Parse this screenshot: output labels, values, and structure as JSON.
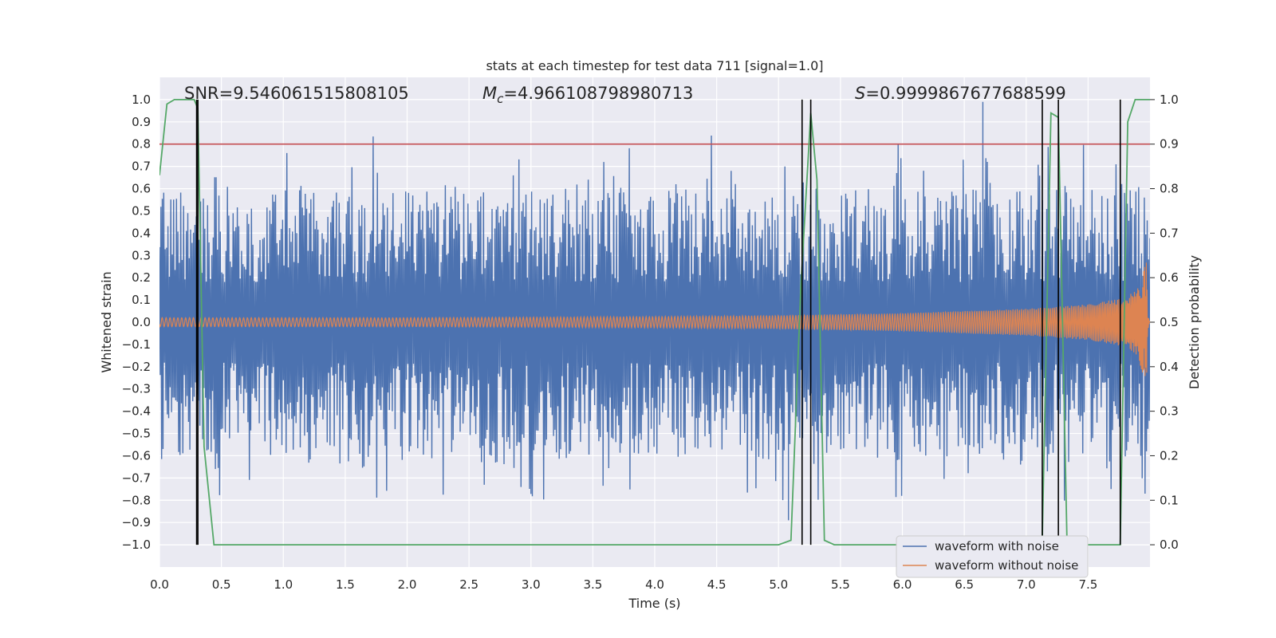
{
  "chart_data": {
    "type": "line",
    "title": "stats at each timestep for test data 711 [signal=1.0]",
    "xlabel": "Time (s)",
    "ylabel": "Whitened strain",
    "y2label": "Detection probability",
    "xlim": [
      0.0,
      8.0
    ],
    "ylim": [
      -1.1,
      1.1
    ],
    "y2lim": [
      -0.05,
      1.05
    ],
    "xticks": [
      0.0,
      0.5,
      1.0,
      1.5,
      2.0,
      2.5,
      3.0,
      3.5,
      4.0,
      4.5,
      5.0,
      5.5,
      6.0,
      6.5,
      7.0,
      7.5
    ],
    "yticks": [
      -1.0,
      -0.9,
      -0.8,
      -0.7,
      -0.6,
      -0.5,
      -0.4,
      -0.3,
      -0.2,
      -0.1,
      0.0,
      0.1,
      0.2,
      0.3,
      0.4,
      0.5,
      0.6,
      0.7,
      0.8,
      0.9,
      1.0
    ],
    "y2ticks": [
      0.0,
      0.1,
      0.2,
      0.3,
      0.4,
      0.5,
      0.6,
      0.7,
      0.8,
      0.9,
      1.0
    ],
    "grid": true,
    "legend_position": "lower-right",
    "annotations": {
      "snr_label": "SNR=9.546061515808105",
      "mc_symbol": "M",
      "mc_subscript": "c",
      "mc_value": "=4.966108798980713",
      "s_symbol": "S",
      "s_value": "=0.9999867677688599"
    },
    "threshold": {
      "value": 0.9,
      "axis": "y2",
      "color": "#c44e52"
    },
    "detection_times": [
      0.3,
      0.31,
      5.19,
      5.26,
      7.13,
      7.26,
      7.76
    ],
    "series": [
      {
        "name": "waveform with noise",
        "color": "#4c72b0",
        "envelope_abs": [
          0.62,
          0.58,
          0.66,
          0.55,
          0.6,
          0.63,
          0.57,
          0.61,
          0.64,
          0.56,
          0.6,
          0.62,
          0.58,
          0.65,
          0.57,
          0.61,
          0.63,
          0.6,
          0.66,
          0.59,
          0.62,
          0.6,
          0.64,
          0.58,
          0.62,
          0.6,
          0.63,
          0.59,
          0.61,
          0.62,
          0.6,
          0.63,
          0.61,
          0.6,
          0.64,
          0.62,
          0.65,
          0.6,
          0.63,
          0.62
        ],
        "max_peak": {
          "x": 6.65,
          "y": 0.99
        },
        "min_peak": {
          "x": 5.08,
          "y": -0.89
        }
      },
      {
        "name": "waveform without noise",
        "color": "#dd8452",
        "amplitude": {
          "x": [
            0.0,
            2.0,
            4.0,
            5.0,
            6.0,
            7.0,
            7.5,
            7.8,
            7.9,
            7.95,
            7.97,
            7.99,
            8.0
          ],
          "y": [
            0.02,
            0.02,
            0.025,
            0.03,
            0.04,
            0.06,
            0.08,
            0.11,
            0.15,
            0.25,
            0.28,
            0.04,
            0.0
          ]
        }
      },
      {
        "name": "detection probability",
        "color": "#55a868",
        "axis": "y2",
        "x": [
          0.0,
          0.06,
          0.12,
          0.28,
          0.31,
          0.36,
          0.44,
          5.0,
          5.1,
          5.18,
          5.26,
          5.31,
          5.37,
          5.45,
          7.1,
          7.13,
          7.2,
          7.26,
          7.33,
          7.76,
          7.82,
          7.88,
          8.0
        ],
        "y": [
          0.83,
          0.99,
          1.0,
          1.0,
          0.98,
          0.22,
          0.0,
          0.0,
          0.01,
          0.58,
          0.97,
          0.82,
          0.01,
          0.0,
          0.0,
          0.01,
          0.97,
          0.96,
          0.0,
          0.0,
          0.95,
          1.0,
          1.0
        ]
      }
    ]
  }
}
